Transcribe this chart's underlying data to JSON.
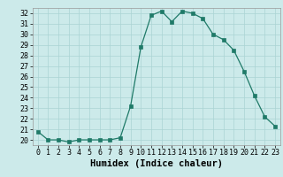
{
  "x": [
    0,
    1,
    2,
    3,
    4,
    5,
    6,
    7,
    8,
    9,
    10,
    11,
    12,
    13,
    14,
    15,
    16,
    17,
    18,
    19,
    20,
    21,
    22,
    23
  ],
  "y": [
    20.8,
    20.0,
    20.0,
    19.8,
    20.0,
    20.0,
    20.0,
    20.0,
    20.2,
    23.2,
    28.8,
    31.8,
    32.2,
    31.2,
    32.2,
    32.0,
    31.5,
    30.0,
    29.5,
    28.5,
    26.5,
    24.2,
    22.2,
    21.3
  ],
  "xlabel": "Humidex (Indice chaleur)",
  "xlim": [
    -0.5,
    23.5
  ],
  "ylim": [
    19.5,
    32.5
  ],
  "yticks": [
    20,
    21,
    22,
    23,
    24,
    25,
    26,
    27,
    28,
    29,
    30,
    31,
    32
  ],
  "xticks": [
    0,
    1,
    2,
    3,
    4,
    5,
    6,
    7,
    8,
    9,
    10,
    11,
    12,
    13,
    14,
    15,
    16,
    17,
    18,
    19,
    20,
    21,
    22,
    23
  ],
  "line_color": "#1f7a68",
  "bg_color": "#cceaea",
  "grid_color": "#aad4d4",
  "tick_fontsize": 6.0,
  "xlabel_fontsize": 7.5
}
